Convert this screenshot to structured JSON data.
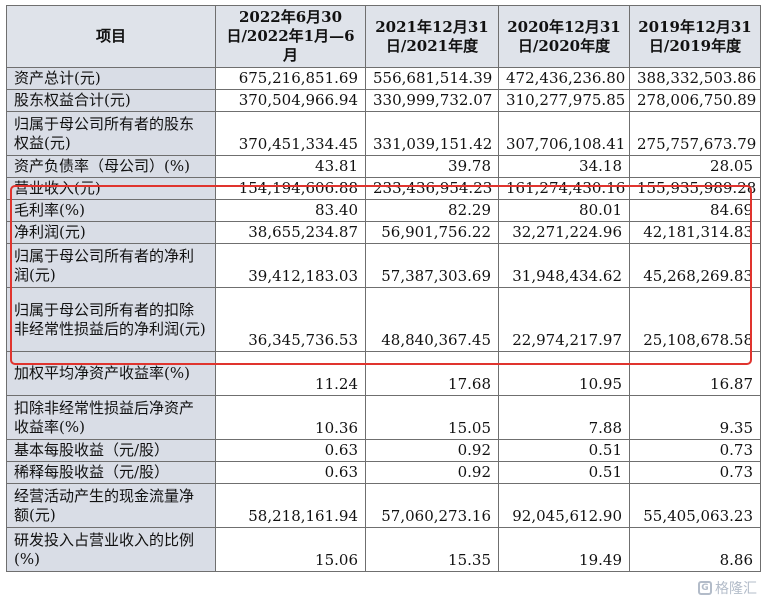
{
  "headers": {
    "item": "项目",
    "c1": "2022年6月30日/2022年1月—6月",
    "c2": "2021年12月31日/2021年度",
    "c3": "2020年12月31日/2020年度",
    "c4": "2019年12月31日/2019年度"
  },
  "rows": [
    {
      "label": "资产总计(元)",
      "v1": "675,216,851.69",
      "v2": "556,681,514.39",
      "v3": "472,436,236.80",
      "v4": "388,332,503.86"
    },
    {
      "label": "股东权益合计(元)",
      "v1": "370,504,966.94",
      "v2": "330,999,732.07",
      "v3": "310,277,975.85",
      "v4": "278,006,750.89"
    },
    {
      "label": "归属于母公司所有者的股东权益(元)",
      "v1": "370,451,334.45",
      "v2": "331,039,151.42",
      "v3": "307,706,108.41",
      "v4": "275,757,673.79"
    },
    {
      "label": "资产负债率（母公司）(%)",
      "v1": "43.81",
      "v2": "39.78",
      "v3": "34.18",
      "v4": "28.05"
    },
    {
      "label": "营业收入(元)",
      "v1": "154,194,606.88",
      "v2": "233,436,954.23",
      "v3": "161,274,430.16",
      "v4": "155,935,989.28"
    },
    {
      "label": "毛利率(%)",
      "v1": "83.40",
      "v2": "82.29",
      "v3": "80.01",
      "v4": "84.69"
    },
    {
      "label": "净利润(元)",
      "v1": "38,655,234.87",
      "v2": "56,901,756.22",
      "v3": "32,271,224.96",
      "v4": "42,181,314.83"
    },
    {
      "label": "归属于母公司所有者的净利润(元)",
      "v1": "39,412,183.03",
      "v2": "57,387,303.69",
      "v3": "31,948,434.62",
      "v4": "45,268,269.83"
    },
    {
      "label": "归属于母公司所有者的扣除非经常性损益后的净利润(元)",
      "v1": "36,345,736.53",
      "v2": "48,840,367.45",
      "v3": "22,974,217.97",
      "v4": "25,108,678.58"
    },
    {
      "label": "加权平均净资产收益率(%)",
      "v1": "11.24",
      "v2": "17.68",
      "v3": "10.95",
      "v4": "16.87"
    },
    {
      "label": "扣除非经常性损益后净资产收益率(%)",
      "v1": "10.36",
      "v2": "15.05",
      "v3": "7.88",
      "v4": "9.35"
    },
    {
      "label": "基本每股收益（元/股）",
      "v1": "0.63",
      "v2": "0.92",
      "v3": "0.51",
      "v4": "0.73"
    },
    {
      "label": "稀释每股收益（元/股）",
      "v1": "0.63",
      "v2": "0.92",
      "v3": "0.51",
      "v4": "0.73"
    },
    {
      "label": "经营活动产生的现金流量净额(元)",
      "v1": "58,218,161.94",
      "v2": "57,060,273.16",
      "v3": "92,045,612.90",
      "v4": "55,405,063.23"
    },
    {
      "label": "研发投入占营业收入的比例(%)",
      "v1": "15.06",
      "v2": "15.35",
      "v3": "19.49",
      "v4": "8.86"
    }
  ],
  "watermark": "格隆汇",
  "watermark_icon": "glh-logo-icon"
}
